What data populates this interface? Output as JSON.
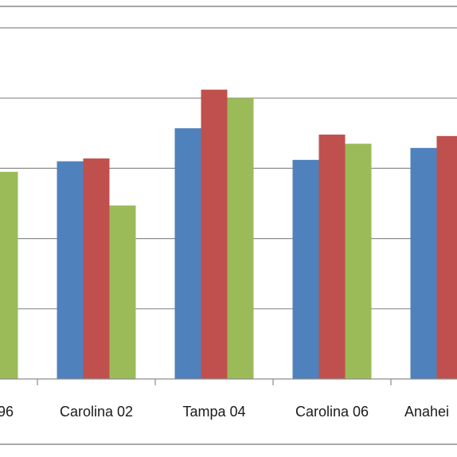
{
  "chart_data": {
    "type": "bar",
    "categories": [
      "96",
      "Carolina 02",
      "Tampa 04",
      "Carolina 06",
      "Anahei"
    ],
    "series": [
      {
        "color": "#4f81bd",
        "values": [
          null,
          31,
          35.7,
          31.2,
          32.9
        ]
      },
      {
        "color": "#c0504d",
        "values": [
          null,
          31.4,
          41.2,
          34.8,
          34.6
        ]
      },
      {
        "color": "#9bbb59",
        "values": [
          29.5,
          24.7,
          40,
          33.5,
          null
        ]
      }
    ],
    "ylim": [
      0,
      50
    ],
    "grid": true,
    "legend": "none"
  }
}
